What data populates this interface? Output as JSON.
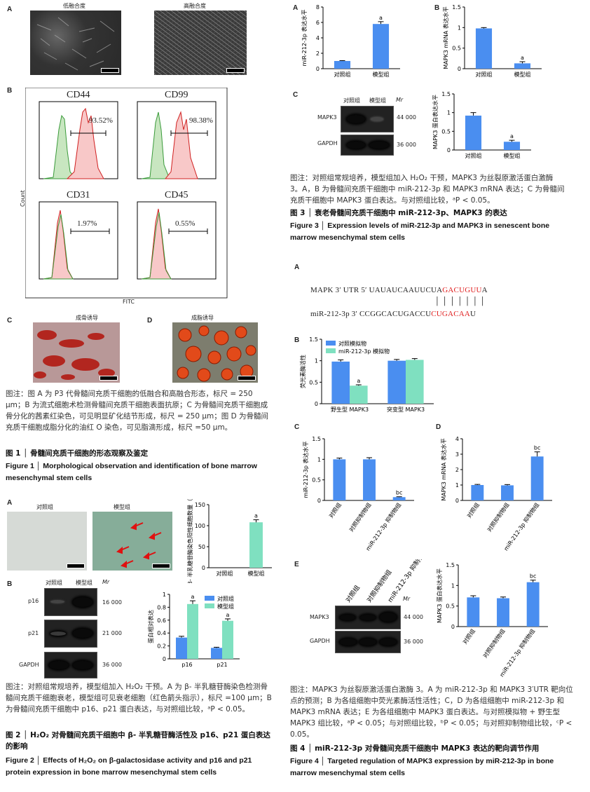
{
  "fig1": {
    "panel_a_label": "A",
    "low_confluence": "低融合度",
    "high_confluence": "高融合度",
    "scale_a1": "250 μm",
    "scale_a2": "250 μm",
    "panel_b_label": "B",
    "count_label": "Count",
    "fitc_label": "FITC",
    "flow": [
      {
        "marker": "CD44",
        "percent": "93.52%"
      },
      {
        "marker": "CD99",
        "percent": "98.38%"
      },
      {
        "marker": "CD31",
        "percent": "1.97%"
      },
      {
        "marker": "CD45",
        "percent": "0.55%"
      }
    ],
    "x_ticks": [
      "10^2.2",
      "10^4",
      "10^5",
      "10^6",
      "10^7.5"
    ],
    "panel_c_label": "C",
    "panel_c_title": "成骨诱导",
    "scale_c": "250 μm",
    "panel_d_label": "D",
    "panel_d_title": "成脂诱导",
    "scale_d": "50 μm",
    "caption": "图注：图 A 为 P3 代骨髓间充质干细胞的低融合和高融合形态，标尺 = 250 μm；B 为流式细胞术检测骨髓间充质干细胞表面抗原；C 为骨髓间充质干细胞成骨分化的茜素红染色，可见明显矿化结节形成，标尺 = 250 μm；图 D 为骨髓间充质干细胞成脂分化的油红 O 染色，可见脂滴形成，标尺 =50 μm。",
    "title_cn": "图 1 │ 骨髓间充质干细胞的形态观察及鉴定",
    "title_en": "Figure 1 │ Morphological observation and identification of bone marrow mesenchymal stem cells"
  },
  "fig2": {
    "panel_a_label": "A",
    "ctrl": "对照组",
    "model": "模型组",
    "scale": "100 μm",
    "panel_b_label": "B",
    "mr": "Mr",
    "p16": "p16",
    "p21": "p21",
    "gapdh": "GAPDH",
    "mw_p16": "16 000",
    "mw_p21": "21 000",
    "mw_gapdh": "36 000",
    "caption": "图注：对照组常规培养，模型组加入 H₂O₂ 干预。A 为 β- 半乳糖苷酶染色检测骨髓间充质干细胞衰老，模型组可见衰老细胞（红色箭头指示），标尺 =100 μm；B 为骨髓间充质干细胞中 p16、p21 蛋白表达，与对照组比较，ᵃP < 0.05。",
    "title_cn": "图 2 │ H₂O₂ 对骨髓间充质干细胞中 β- 半乳糖苷酶活性及 p16、p21 蛋白表达的影响",
    "title_en": "Figure 2 │ Effects of H₂O₂ on β-galactosidase activity and p16 and p21 protein expression in bone marrow mesenchymal stem cells"
  },
  "fig3": {
    "panel_a_label": "A",
    "panel_b_label": "B",
    "panel_c_label": "C",
    "ctrl": "对照组",
    "model": "模型组",
    "mr": "Mr",
    "mapk3": "MAPK3",
    "gapdh": "GAPDH",
    "mw_mapk3": "44 000",
    "mw_gapdh": "36 000",
    "caption": "图注：对照组常规培养，模型组加入 H₂O₂ 干预，MAPK3 为丝裂原激活蛋白激酶 3。A，B 为骨髓间充质干细胞中 miR-212-3p 和 MAPK3 mRNA 表达；C 为骨髓间充质干细胞中 MAPK3 蛋白表达。与对照组比较，ᵃP < 0.05。",
    "title_cn": "图 3 │ 衰老骨髓间充质干细胞中 miR-212-3p、MAPK3 的表达",
    "title_en": "Figure 3 │ Expression levels of miR-212-3p and MAPK3 in senescent bone marrow mesenchymal stem cells"
  },
  "fig4": {
    "panel_a_label": "A",
    "utr_label": "MAPK 3′ UTR  5′",
    "utr_seq_black": "UAUAUCAAUUCUA",
    "utr_seq_red": "GACUGUU",
    "utr_seq_tail": "A",
    "pairing": "│││││││",
    "mir_label": "miR-212-3p       3′",
    "mir_seq_black": "CCGGCACUGACCU",
    "mir_seq_red": "CUGACAA",
    "mir_seq_tail": "U",
    "panel_b_label": "B",
    "panel_c_label": "C",
    "panel_d_label": "D",
    "panel_e_label": "E",
    "mr": "Mr",
    "mapk3": "MAPK3",
    "gapdh": "GAPDH",
    "mw_mapk3": "44 000",
    "mw_gapdh": "36 000",
    "lanes": [
      "对照组",
      "对照抑制物组",
      "miR-212-3p 抑制物组"
    ],
    "caption": "图注：MAPK3 为丝裂原激活蛋白激酶 3。A 为 miR-212-3p 和 MAPK3 3′UTR 靶向位点的预测；B 为各组细胞中荧光素酶活性活性；C，D 为各组细胞中 miR-212-3p 和 MAPK3 mRNA 表达；E 为各组细胞中 MAPK3 蛋白表达。与对照模拟物 + 野生型 MAPK3 组比较，ᵃP < 0.05；与对照组比较，ᵇP < 0.05；与对照抑制物组比较，ᶜP < 0.05。",
    "title_cn": "图 4 │ miR-212-3p 对骨髓间充质干细胞中 MAPK3 表达的靶向调节作用",
    "title_en": "Figure 4 │ Targeted regulation of MAPK3 expression by miR-212-3p in bone marrow mesenchymal stem cells"
  },
  "chart_data": [
    {
      "id": "fig2A",
      "type": "bar",
      "categories": [
        "对照组",
        "模型组"
      ],
      "values": [
        0,
        108
      ],
      "errors": [
        0,
        6
      ],
      "sig": [
        "",
        "a"
      ],
      "ylabel": "β- 半乳糖苷酶染色阳性细胞数量（个）",
      "ylim": [
        0,
        150
      ],
      "yticks": [
        0,
        50,
        100,
        150
      ],
      "colors": [
        "#7fe0c0",
        "#7fe0c0"
      ]
    },
    {
      "id": "fig2B",
      "type": "bar",
      "categories": [
        "p16",
        "p21"
      ],
      "series": [
        {
          "name": "对照组",
          "values": [
            0.33,
            0.17
          ],
          "errors": [
            0.02,
            0.01
          ],
          "color": "#4a8ef0"
        },
        {
          "name": "模型组",
          "values": [
            0.85,
            0.59
          ],
          "errors": [
            0.05,
            0.03
          ],
          "color": "#7fe0c0"
        }
      ],
      "sig": [
        [
          "",
          "a"
        ],
        [
          "",
          "a"
        ]
      ],
      "ylabel": "蛋白相对表达",
      "ylim": [
        0,
        1.0
      ],
      "yticks": [
        0,
        0.2,
        0.4,
        0.6,
        0.8,
        1.0
      ],
      "legend": "top-right"
    },
    {
      "id": "fig3A",
      "type": "bar",
      "categories": [
        "对照组",
        "模型组"
      ],
      "values": [
        1.0,
        5.8
      ],
      "errors": [
        0.05,
        0.3
      ],
      "sig": [
        "",
        "a"
      ],
      "ylabel": "miR-212-3p 表达水平",
      "ylim": [
        0,
        8
      ],
      "yticks": [
        0,
        2,
        4,
        6,
        8
      ],
      "colors": [
        "#4a8ef0",
        "#4a8ef0"
      ]
    },
    {
      "id": "fig3B",
      "type": "bar",
      "categories": [
        "对照组",
        "模型组"
      ],
      "values": [
        0.98,
        0.13
      ],
      "errors": [
        0.02,
        0.04
      ],
      "sig": [
        "",
        "a"
      ],
      "ylabel": "MAPK3 mRNA 表达水平",
      "ylim": [
        0,
        1.5
      ],
      "yticks": [
        0,
        0.5,
        1.0,
        1.5
      ],
      "colors": [
        "#4a8ef0",
        "#4a8ef0"
      ]
    },
    {
      "id": "fig3C",
      "type": "bar",
      "categories": [
        "对照组",
        "模型组"
      ],
      "values": [
        0.92,
        0.22
      ],
      "errors": [
        0.08,
        0.04
      ],
      "sig": [
        "",
        "a"
      ],
      "ylabel": "MAPK3 蛋白表达水平",
      "ylim": [
        0,
        1.5
      ],
      "yticks": [
        0,
        0.5,
        1.0,
        1.5
      ],
      "colors": [
        "#4a8ef0",
        "#4a8ef0"
      ]
    },
    {
      "id": "fig4B",
      "type": "bar",
      "categories": [
        "野生型 MAPK3",
        "突变型 MAPK3"
      ],
      "series": [
        {
          "name": "对照模拟物",
          "values": [
            0.98,
            1.0
          ],
          "errors": [
            0.04,
            0.03
          ],
          "color": "#4a8ef0"
        },
        {
          "name": "miR-212-3p 模拟物",
          "values": [
            0.42,
            1.02
          ],
          "errors": [
            0.02,
            0.03
          ],
          "color": "#7fe0c0"
        }
      ],
      "sig": [
        [
          "",
          "a"
        ],
        [
          "",
          ""
        ]
      ],
      "ylabel": "荧光素酶活性",
      "ylim": [
        0,
        1.5
      ],
      "yticks": [
        0,
        0.5,
        1.0,
        1.5
      ],
      "legend": "top-left"
    },
    {
      "id": "fig4C",
      "type": "bar",
      "categories": [
        "对照组",
        "对照抑制物组",
        "miR-212-3p 抑制物组"
      ],
      "values": [
        1.0,
        1.0,
        0.08
      ],
      "errors": [
        0.03,
        0.04,
        0.01
      ],
      "sig": [
        "",
        "",
        "bc"
      ],
      "ylabel": "miR-212-3p 表达水平",
      "ylim": [
        0,
        1.5
      ],
      "yticks": [
        0,
        0.5,
        1.0,
        1.5
      ],
      "colors": [
        "#4a8ef0",
        "#4a8ef0",
        "#4a8ef0"
      ]
    },
    {
      "id": "fig4D",
      "type": "bar",
      "categories": [
        "对照组",
        "对照抑制物组",
        "miR-212-3p 抑制物组"
      ],
      "values": [
        1.0,
        0.98,
        2.85
      ],
      "errors": [
        0.04,
        0.05,
        0.3
      ],
      "sig": [
        "",
        "",
        "bc"
      ],
      "ylabel": "MAPK3 mRNA 表达水平",
      "ylim": [
        0,
        4
      ],
      "yticks": [
        0,
        1,
        2,
        3,
        4
      ],
      "colors": [
        "#4a8ef0",
        "#4a8ef0",
        "#4a8ef0"
      ]
    },
    {
      "id": "fig4E",
      "type": "bar",
      "categories": [
        "对照组",
        "对照抑制物组",
        "miR-212-3p 抑制物组"
      ],
      "values": [
        0.71,
        0.69,
        1.08
      ],
      "errors": [
        0.04,
        0.03,
        0.05
      ],
      "sig": [
        "",
        "",
        "bc"
      ],
      "ylabel": "MAPK3 蛋白表达水平",
      "ylim": [
        0,
        1.5
      ],
      "yticks": [
        0,
        0.5,
        1.0,
        1.5
      ],
      "colors": [
        "#4a8ef0",
        "#4a8ef0",
        "#4a8ef0"
      ]
    }
  ]
}
